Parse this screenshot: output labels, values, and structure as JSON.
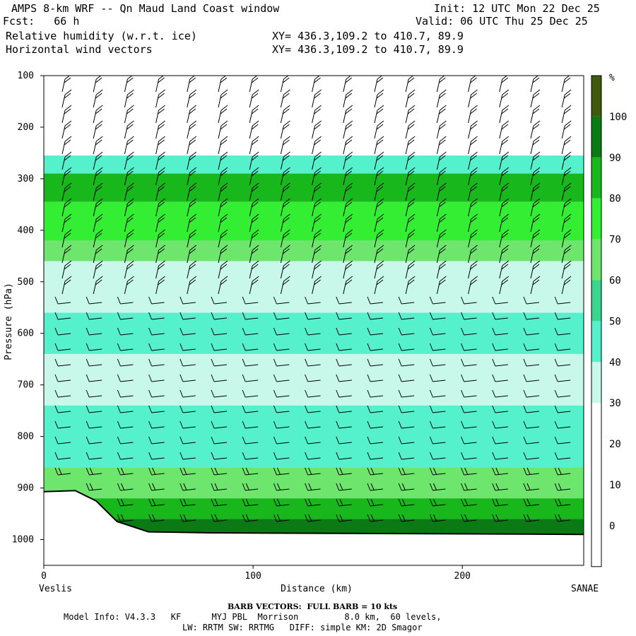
{
  "header": {
    "title": "AMPS 8-km WRF -- Qn Maud Land Coast window",
    "fcst": "Fcst:   66 h",
    "init": "Init: 12 UTC Mon 22 Dec 25",
    "valid": "Valid: 06 UTC Thu 25 Dec 25",
    "field1": "Relative humidity (w.r.t. ice)",
    "field2": "Horizontal wind vectors",
    "xy1": "XY= 436.3,109.2 to 410.7, 89.9",
    "xy2": "XY= 436.3,109.2 to 410.7, 89.9"
  },
  "chart_data": {
    "type": "cross-section contour",
    "ylabel": "Pressure (hPa)",
    "xlabel": "Distance (km)",
    "x_start_label": "Veslis",
    "x_end_label": "SANAE",
    "xlim": [
      0,
      258
    ],
    "ylim": [
      1050,
      100
    ],
    "y_ticks": [
      100,
      200,
      300,
      400,
      500,
      600,
      700,
      800,
      900,
      1000
    ],
    "x_ticks": [
      0,
      100,
      200
    ],
    "colorbar": {
      "unit": "%",
      "levels": [
        100,
        90,
        80,
        70,
        60,
        50,
        40,
        30,
        20,
        10,
        0
      ],
      "colors": [
        "#3f5a0f",
        "#0b7a14",
        "#18b81c",
        "#33ee33",
        "#6ee66e",
        "#3ad68f",
        "#55f0cc",
        "#c8f8ea",
        "#ffffff",
        "#ffffff",
        "#ffffff",
        "#ffffff"
      ]
    },
    "rh_layers": [
      {
        "p_top": 255,
        "p_bottom": 290,
        "rh": 45
      },
      {
        "p_top": 290,
        "p_bottom": 345,
        "rh": 88
      },
      {
        "p_top": 345,
        "p_bottom": 420,
        "rh": 75
      },
      {
        "p_top": 420,
        "p_bottom": 460,
        "rh": 65
      },
      {
        "p_top": 460,
        "p_bottom": 560,
        "rh": 35
      },
      {
        "p_top": 560,
        "p_bottom": 640,
        "rh": 48
      },
      {
        "p_top": 640,
        "p_bottom": 740,
        "rh": 35
      },
      {
        "p_top": 740,
        "p_bottom": 860,
        "rh": 48
      },
      {
        "p_top": 860,
        "p_bottom": 920,
        "rh": 62
      },
      {
        "p_top": 920,
        "p_bottom": 960,
        "rh": 85
      },
      {
        "p_top": 960,
        "p_bottom": 990,
        "rh": 100
      }
    ],
    "terrain": [
      [
        0,
        907
      ],
      [
        15,
        905
      ],
      [
        25,
        925
      ],
      [
        35,
        965
      ],
      [
        50,
        985
      ],
      [
        80,
        987
      ],
      [
        258,
        990
      ]
    ]
  },
  "footer": {
    "barb_note": "BARB VECTORS:  FULL BARB = 10 kts",
    "model_info": "Model Info: V4.3.3   KF      MYJ PBL  Morrison         8.0 km,  60 levels,",
    "model_info2": "LW: RRTM SW: RRTMG   DIFF: simple KM: 2D Smagor"
  }
}
